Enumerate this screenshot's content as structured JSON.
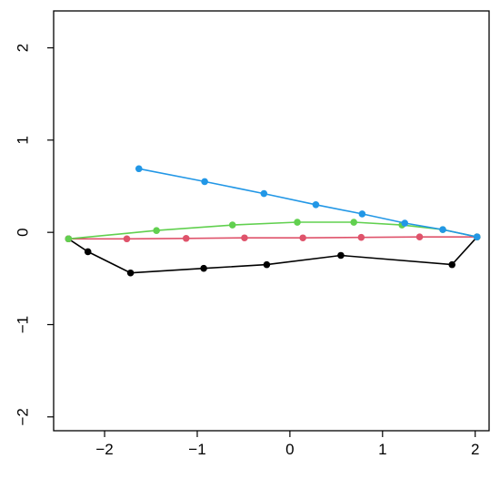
{
  "chart_data": {
    "type": "line",
    "title": "",
    "xlabel": "",
    "ylabel": "",
    "xlim": [
      -2.55,
      2.15
    ],
    "ylim": [
      -2.15,
      2.4
    ],
    "x_ticks": [
      -2,
      -1,
      0,
      1,
      2
    ],
    "y_ticks": [
      -2,
      -1,
      0,
      1,
      2
    ],
    "grid": false,
    "legend": "none",
    "series": [
      {
        "color": "#000000",
        "x": [
          -2.39,
          -2.18,
          -1.72,
          -0.93,
          -0.25,
          0.55,
          1.75,
          2.02
        ],
        "y": [
          -0.07,
          -0.21,
          -0.44,
          -0.39,
          -0.35,
          -0.25,
          -0.35,
          -0.05
        ]
      },
      {
        "color": "#DF536B",
        "x": [
          -2.39,
          -1.76,
          -1.12,
          -0.49,
          0.14,
          0.77,
          1.4,
          2.02
        ],
        "y": [
          -0.07,
          -0.07,
          -0.065,
          -0.06,
          -0.06,
          -0.055,
          -0.05,
          -0.05
        ]
      },
      {
        "color": "#61D04F",
        "x": [
          -2.39,
          -1.44,
          -0.62,
          0.08,
          0.69,
          1.21,
          1.65,
          2.02
        ],
        "y": [
          -0.07,
          0.02,
          0.08,
          0.11,
          0.11,
          0.08,
          0.03,
          -0.05
        ]
      },
      {
        "color": "#2297E6",
        "x": [
          -1.63,
          -0.92,
          -0.28,
          0.28,
          0.78,
          1.24,
          1.65,
          2.02
        ],
        "y": [
          0.69,
          0.55,
          0.42,
          0.3,
          0.2,
          0.1,
          0.03,
          -0.05
        ]
      }
    ]
  }
}
